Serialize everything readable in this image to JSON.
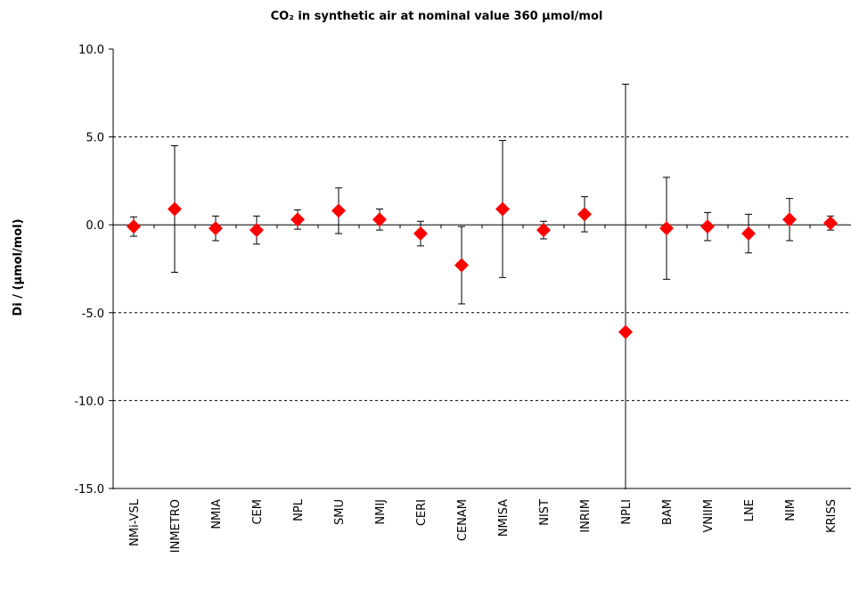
{
  "chart_data": {
    "type": "errorbar",
    "title": "CO₂ in synthetic air at nominal value 360 µmol/mol",
    "ylabel": "Di / (µmol/mol)",
    "categories": [
      "NMi-VSL",
      "INMETRO",
      "NMIA",
      "CEM",
      "NPL",
      "SMU",
      "NMIJ",
      "CERI",
      "CENAM",
      "NMISA",
      "NIST",
      "INRIM",
      "NPLI",
      "BAM",
      "VNIIM",
      "LNE",
      "NIM",
      "KRISS"
    ],
    "values": [
      -0.1,
      0.9,
      -0.2,
      -0.3,
      0.3,
      0.8,
      0.3,
      -0.5,
      -2.3,
      0.9,
      -0.3,
      0.6,
      -6.1,
      -0.2,
      -0.1,
      -0.5,
      0.3,
      0.1
    ],
    "errors": [
      0.55,
      3.6,
      0.7,
      0.8,
      0.55,
      1.3,
      0.6,
      0.7,
      2.2,
      3.9,
      0.5,
      1.0,
      14.1,
      2.9,
      0.8,
      1.1,
      1.2,
      0.4
    ],
    "color": "#ff0000",
    "ylim": [
      -15,
      10
    ],
    "yticks": [
      {
        "value": -15,
        "label": "-15.0"
      },
      {
        "value": -10,
        "label": "-10.0"
      },
      {
        "value": -5,
        "label": "-5.0"
      },
      {
        "value": 0,
        "label": "0.0"
      },
      {
        "value": 5,
        "label": "5.0"
      },
      {
        "value": 10,
        "label": "10.0"
      }
    ],
    "grid": true
  }
}
